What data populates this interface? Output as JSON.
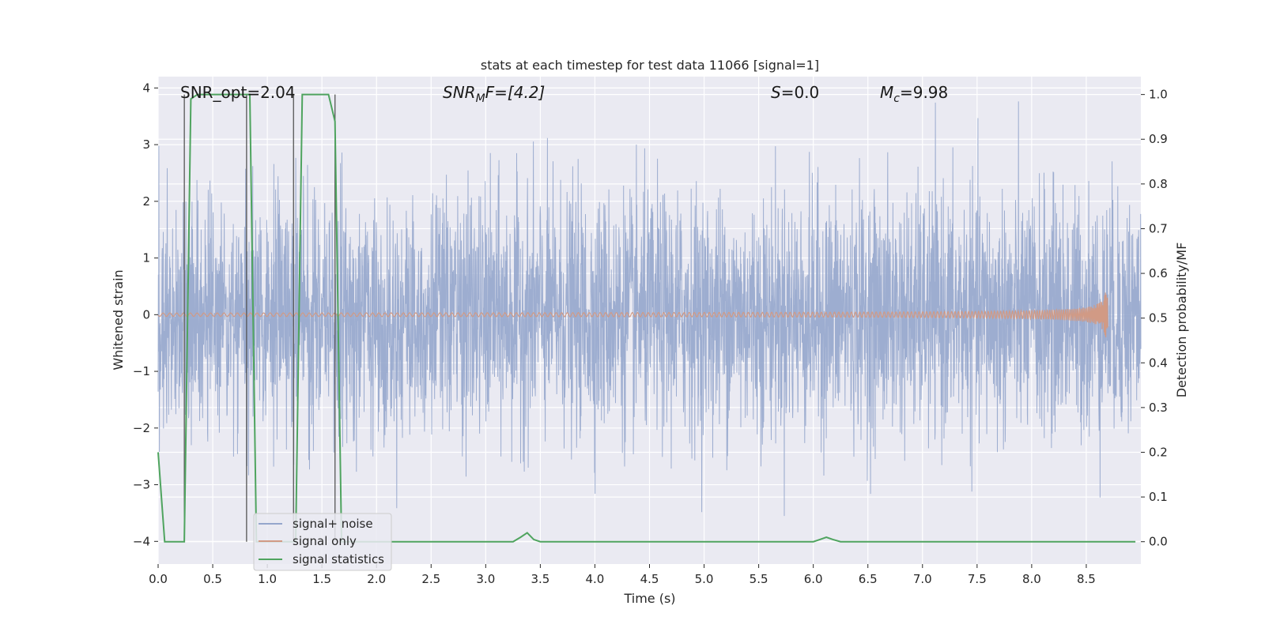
{
  "chart_data": {
    "type": "line",
    "title": "stats at each timestep for test data 11066 [signal=1]",
    "xlabel": "Time (s)",
    "ylabel": "Whitened strain",
    "y2label": "Detection probability/MF",
    "xlim": [
      0.0,
      9.0
    ],
    "ylim": [
      -4.4,
      4.2
    ],
    "y2lim": [
      -0.05,
      1.04
    ],
    "xticks": [
      "0.0",
      "0.5",
      "1.0",
      "1.5",
      "2.0",
      "2.5",
      "3.0",
      "3.5",
      "4.0",
      "4.5",
      "5.0",
      "5.5",
      "6.0",
      "6.5",
      "7.0",
      "7.5",
      "8.0",
      "8.5"
    ],
    "xtick_values": [
      0.0,
      0.5,
      1.0,
      1.5,
      2.0,
      2.5,
      3.0,
      3.5,
      4.0,
      4.5,
      5.0,
      5.5,
      6.0,
      6.5,
      7.0,
      7.5,
      8.0,
      8.5
    ],
    "yticks": [
      "−4",
      "−3",
      "−2",
      "−1",
      "0",
      "1",
      "2",
      "3",
      "4"
    ],
    "ytick_values": [
      -4,
      -3,
      -2,
      -1,
      0,
      1,
      2,
      3,
      4
    ],
    "y2ticks": [
      "0.0",
      "0.1",
      "0.2",
      "0.3",
      "0.4",
      "0.5",
      "0.6",
      "0.7",
      "0.8",
      "0.9",
      "1.0"
    ],
    "y2tick_values": [
      0.0,
      0.1,
      0.2,
      0.3,
      0.4,
      0.5,
      0.6,
      0.7,
      0.8,
      0.9,
      1.0
    ],
    "grid": true,
    "legend_position": "lower-left",
    "annotations": {
      "snr_opt": "SNR_opt=2.04",
      "snr_mf_base": "SNR",
      "snr_mf_sub": "M",
      "snr_mf_rest": "F=[4.2]",
      "s_var": "S",
      "s_rest": "=0.0",
      "mc_base": "M",
      "mc_sub": "c",
      "mc_rest": "=9.98"
    },
    "series": [
      {
        "name": "signal+ noise",
        "color": "#95a6cc",
        "description_only": false
      },
      {
        "name": "signal only",
        "color": "#d19a85"
      },
      {
        "name": "signal statistics",
        "color": "#4fa45f",
        "x": [
          0.0,
          0.06,
          0.12,
          0.18,
          0.24,
          0.3,
          0.36,
          0.42,
          0.48,
          0.54,
          0.6,
          0.66,
          0.72,
          0.78,
          0.84,
          0.9,
          0.96,
          1.02,
          1.08,
          1.14,
          1.2,
          1.26,
          1.32,
          1.38,
          1.44,
          1.5,
          1.56,
          1.62,
          1.68,
          1.74,
          1.8,
          1.86,
          1.92,
          1.98,
          2.1,
          2.4,
          2.7,
          3.0,
          3.25,
          3.32,
          3.38,
          3.44,
          3.5,
          3.6,
          4.0,
          4.5,
          5.0,
          5.5,
          6.0,
          6.06,
          6.12,
          6.18,
          6.25,
          6.4,
          7.0,
          7.5,
          8.0,
          8.5,
          8.95
        ],
        "y": [
          0.2,
          0.0,
          0.0,
          0.0,
          0.0,
          0.99,
          1.0,
          1.0,
          1.0,
          1.0,
          1.0,
          1.0,
          1.0,
          1.0,
          1.0,
          0.0,
          0.0,
          0.0,
          0.0,
          0.0,
          0.0,
          0.0,
          1.0,
          1.0,
          1.0,
          1.0,
          1.0,
          0.94,
          0.0,
          0.0,
          0.0,
          0.0,
          0.0,
          0.0,
          0.0,
          0.0,
          0.0,
          0.0,
          0.0,
          0.01,
          0.02,
          0.005,
          0.0,
          0.0,
          0.0,
          0.0,
          0.0,
          0.0,
          0.0,
          0.005,
          0.01,
          0.005,
          0.0,
          0.0,
          0.0,
          0.0,
          0.0,
          0.0,
          0.0
        ]
      }
    ],
    "vertical_lines": [
      0.24,
      0.81,
      1.24,
      1.62
    ]
  }
}
